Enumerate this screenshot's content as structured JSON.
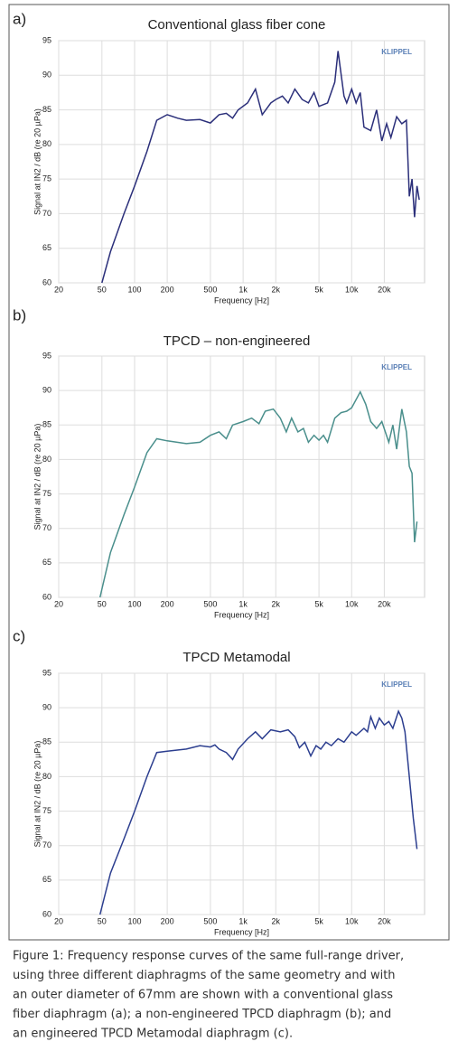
{
  "chart_data": [
    {
      "type": "line",
      "panel_label": "a)",
      "title": "Conventional glass fiber cone",
      "watermark": "KLIPPEL",
      "xlabel": "Frequency [Hz]",
      "ylabel": "Signal at IN2 / dB (re 20 µPa)",
      "xscale": "log",
      "grid": true,
      "color": "#2b2f7a",
      "xlim": [
        20,
        47000
      ],
      "ylim": [
        60,
        95
      ],
      "xticks": [
        20,
        50,
        100,
        200,
        500,
        {
          "value": 1000,
          "label": "1k"
        },
        {
          "value": 2000,
          "label": "2k"
        },
        {
          "value": 5000,
          "label": "5k"
        },
        {
          "value": 10000,
          "label": "10k"
        },
        {
          "value": 20000,
          "label": "20k"
        }
      ],
      "yticks": [
        60,
        65,
        70,
        75,
        80,
        85,
        90,
        95
      ],
      "x": [
        50,
        60,
        80,
        100,
        130,
        160,
        200,
        250,
        300,
        400,
        500,
        600,
        700,
        800,
        900,
        1100,
        1300,
        1500,
        1800,
        2000,
        2300,
        2600,
        3000,
        3500,
        4000,
        4500,
        5000,
        6000,
        7000,
        7500,
        8500,
        9000,
        10000,
        11000,
        12000,
        13000,
        15000,
        17000,
        19000,
        21000,
        23000,
        26000,
        29000,
        32000,
        34000,
        36000,
        38000,
        40000,
        42000
      ],
      "values": [
        60,
        64.5,
        70,
        74,
        79,
        83.5,
        84.3,
        83.8,
        83.5,
        83.6,
        83.1,
        84.3,
        84.5,
        83.8,
        85,
        86,
        88,
        84.3,
        86,
        86.5,
        87,
        86,
        88,
        86.5,
        86,
        87.5,
        85.5,
        86,
        89,
        93.5,
        87,
        86,
        88,
        86,
        87.5,
        82.5,
        82,
        85,
        80.5,
        83,
        81,
        84,
        83,
        83.5,
        72.5,
        75,
        69.5,
        74,
        72
      ]
    },
    {
      "type": "line",
      "panel_label": "b)",
      "title": "TPCD – non-engineered",
      "watermark": "KLIPPEL",
      "xlabel": "Frequency [Hz]",
      "ylabel": "Signal at IN2 / dB (re 20 µPa)",
      "xscale": "log",
      "grid": true,
      "color": "#4a8f8c",
      "xlim": [
        20,
        47000
      ],
      "ylim": [
        60,
        95
      ],
      "xticks": [
        20,
        50,
        100,
        200,
        500,
        {
          "value": 1000,
          "label": "1k"
        },
        {
          "value": 2000,
          "label": "2k"
        },
        {
          "value": 5000,
          "label": "5k"
        },
        {
          "value": 10000,
          "label": "10k"
        },
        {
          "value": 20000,
          "label": "20k"
        }
      ],
      "yticks": [
        60,
        65,
        70,
        75,
        80,
        85,
        90,
        95
      ],
      "x": [
        48,
        60,
        80,
        100,
        130,
        160,
        200,
        300,
        400,
        500,
        600,
        700,
        800,
        1000,
        1200,
        1400,
        1600,
        1900,
        2200,
        2500,
        2800,
        3200,
        3600,
        4000,
        4500,
        5000,
        5500,
        6000,
        7000,
        8000,
        9000,
        10000,
        12000,
        13500,
        15000,
        17000,
        19000,
        22000,
        24000,
        26000,
        29000,
        32000,
        34000,
        36000,
        38000,
        40000
      ],
      "values": [
        60,
        66.5,
        72,
        76,
        81,
        83,
        82.7,
        82.3,
        82.5,
        83.5,
        84,
        83,
        85,
        85.5,
        86,
        85.2,
        87,
        87.3,
        86,
        84,
        86,
        84,
        84.5,
        82.5,
        83.5,
        82.8,
        83.5,
        82.5,
        86,
        86.8,
        87,
        87.5,
        89.8,
        88,
        85.5,
        84.5,
        85.5,
        82.5,
        85,
        81.5,
        87.3,
        84,
        79,
        78,
        68,
        71
      ]
    },
    {
      "type": "line",
      "panel_label": "c)",
      "title": "TPCD Metamodal",
      "watermark": "KLIPPEL",
      "xlabel": "Frequency [Hz]",
      "ylabel": "Signal at IN2 / dB (re 20 µPa)",
      "xscale": "log",
      "grid": true,
      "color": "#2c3e8f",
      "xlim": [
        20,
        47000
      ],
      "ylim": [
        60,
        95
      ],
      "xticks": [
        20,
        50,
        100,
        200,
        500,
        {
          "value": 1000,
          "label": "1k"
        },
        {
          "value": 2000,
          "label": "2k"
        },
        {
          "value": 5000,
          "label": "5k"
        },
        {
          "value": 10000,
          "label": "10k"
        },
        {
          "value": 20000,
          "label": "20k"
        }
      ],
      "yticks": [
        60,
        65,
        70,
        75,
        80,
        85,
        90,
        95
      ],
      "x": [
        48,
        60,
        80,
        100,
        130,
        160,
        200,
        300,
        400,
        500,
        550,
        600,
        700,
        800,
        900,
        1100,
        1300,
        1500,
        1800,
        2200,
        2600,
        3000,
        3300,
        3700,
        4200,
        4700,
        5200,
        5800,
        6500,
        7500,
        8500,
        10000,
        11000,
        13000,
        14000,
        15000,
        16500,
        18000,
        20000,
        22000,
        24000,
        27000,
        29000,
        31000,
        34000,
        37000,
        40000
      ],
      "values": [
        60,
        66,
        71,
        75,
        80,
        83.5,
        83.7,
        84,
        84.5,
        84.3,
        84.6,
        84,
        83.5,
        82.5,
        84,
        85.5,
        86.5,
        85.5,
        86.8,
        86.5,
        86.8,
        85.8,
        84.2,
        85,
        83,
        84.5,
        84,
        85,
        84.5,
        85.5,
        85,
        86.5,
        86,
        87,
        86.5,
        88.7,
        87,
        88.5,
        87.5,
        88,
        87,
        89.5,
        88.5,
        86.5,
        80,
        74,
        69.5
      ]
    }
  ],
  "caption": [
    "Figure 1: Frequency response curves of the same full-range driver,",
    "using three different diaphragms of the same geometry and with",
    "an outer diameter of 67mm are shown with a conventional glass",
    "fiber diaphragm (a); a non-engineered TPCD diaphragm (b); and",
    "an engineered TPCD Metamodal diaphragm (c)."
  ]
}
